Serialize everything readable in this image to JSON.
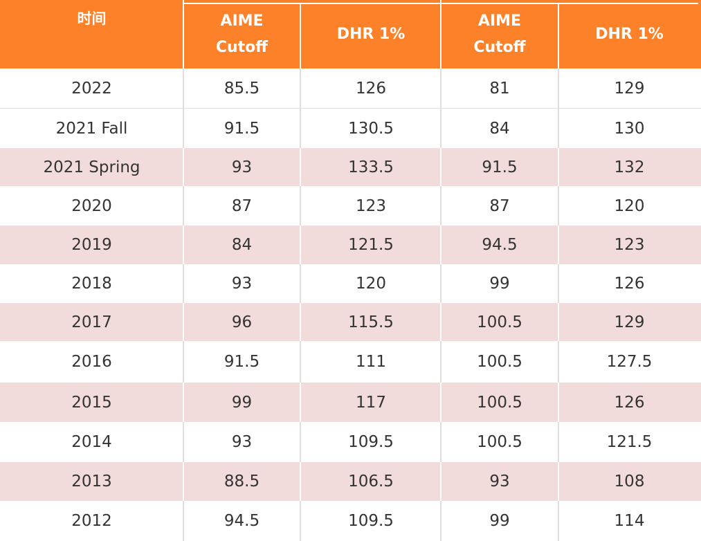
{
  "colors": {
    "header_bg": "#fd8128",
    "stripe_bg": "#f2dcdb",
    "header_text": "#ffffff",
    "body_text": "#333333"
  },
  "table": {
    "headers": [
      "时间",
      "AIME\nCutoff",
      "DHR 1%",
      "AIME\nCutoff",
      "DHR 1%"
    ],
    "rows": [
      [
        "2022",
        "85.5",
        "126",
        "81",
        "129"
      ],
      [
        "2021 Fall",
        "91.5",
        "130.5",
        "84",
        "130"
      ],
      [
        "2021 Spring",
        "93",
        "133.5",
        "91.5",
        "132"
      ],
      [
        "2020",
        "87",
        "123",
        "87",
        "120"
      ],
      [
        "2019",
        "84",
        "121.5",
        "94.5",
        "123"
      ],
      [
        "2018",
        "93",
        "120",
        "99",
        "126"
      ],
      [
        "2017",
        "96",
        "115.5",
        "100.5",
        "129"
      ],
      [
        "2016",
        "91.5",
        "111",
        "100.5",
        "127.5"
      ],
      [
        "2015",
        "99",
        "117",
        "100.5",
        "126"
      ],
      [
        "2014",
        "93",
        "109.5",
        "100.5",
        "121.5"
      ],
      [
        "2013",
        "88.5",
        "106.5",
        "93",
        "108"
      ],
      [
        "2012",
        "94.5",
        "109.5",
        "99",
        "114"
      ]
    ]
  }
}
